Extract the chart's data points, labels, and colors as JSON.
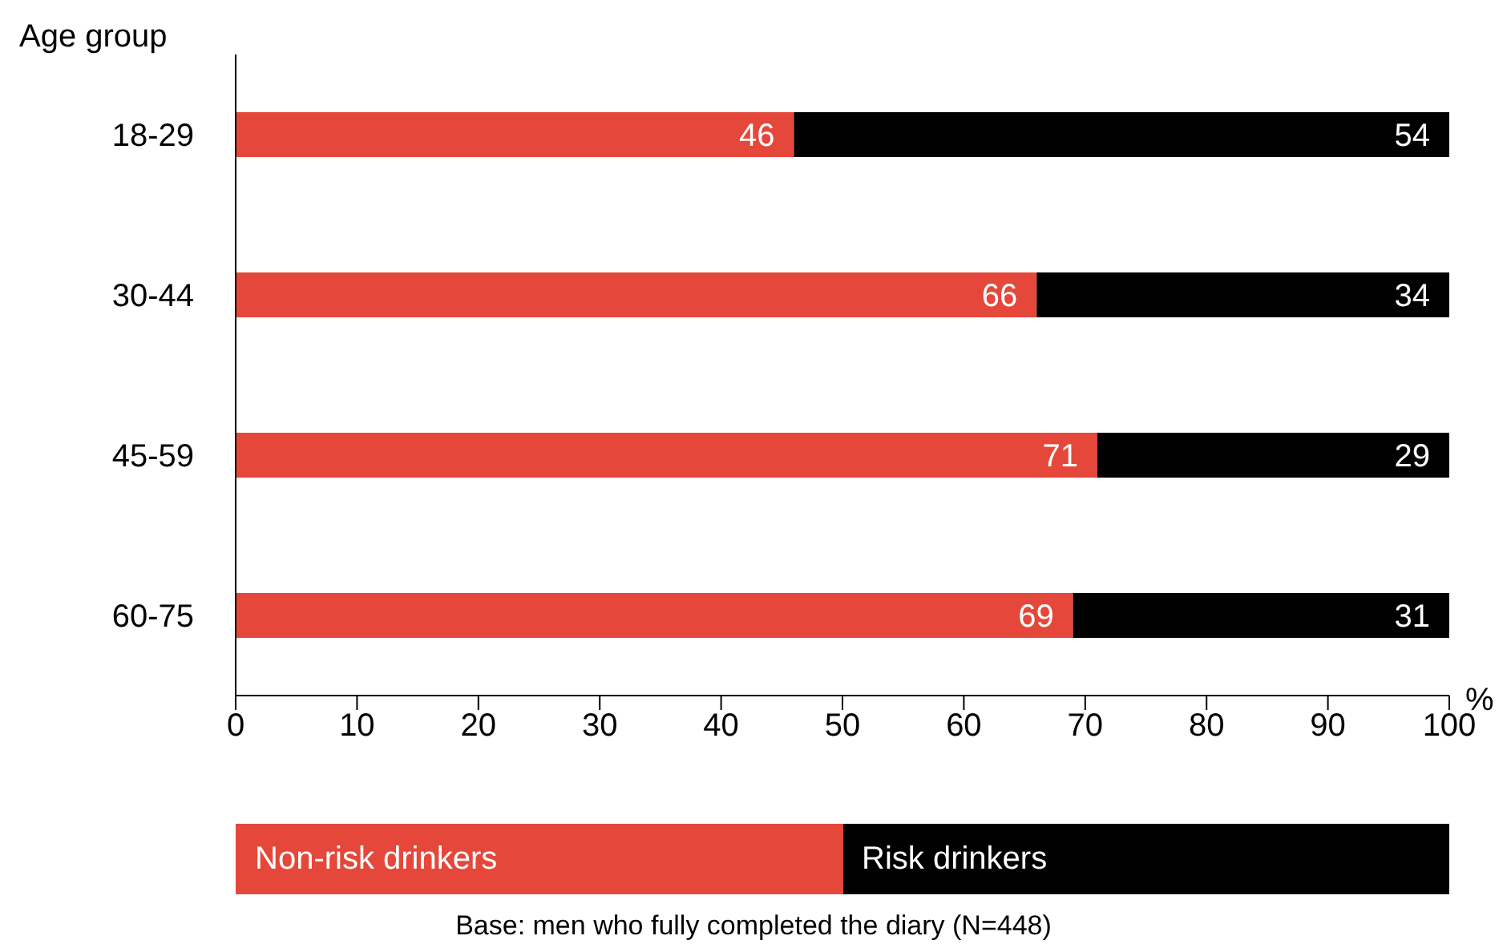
{
  "chart_data": {
    "type": "bar",
    "orientation": "horizontal",
    "stacked": true,
    "ylabel": "Age group",
    "xlabel": "%",
    "categories": [
      "18-29",
      "30-44",
      "45-59",
      "60-75"
    ],
    "series": [
      {
        "name": "Non-risk drinkers",
        "color": "#e5473a",
        "values": [
          46,
          66,
          71,
          69
        ]
      },
      {
        "name": "Risk drinkers",
        "color": "#000000",
        "values": [
          54,
          34,
          29,
          31
        ]
      }
    ],
    "xlim": [
      0,
      100
    ],
    "xticks": [
      0,
      10,
      20,
      30,
      40,
      50,
      60,
      70,
      80,
      90,
      100
    ],
    "data_labels": true,
    "legend": "bottom",
    "grid": false,
    "annotations": [
      "Base: men who fully completed the diary (N=448)"
    ]
  }
}
